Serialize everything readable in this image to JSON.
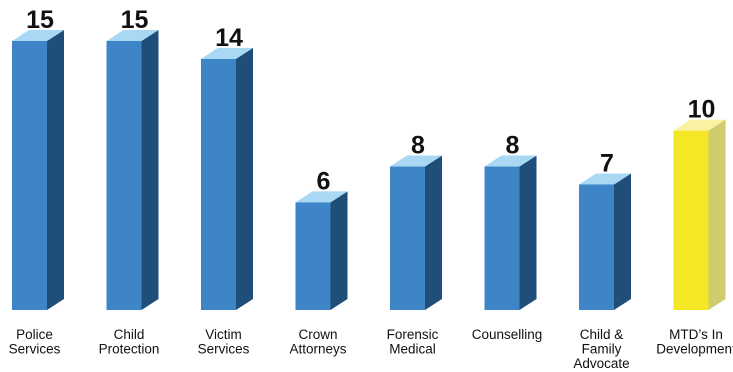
{
  "chart_data": {
    "type": "bar",
    "style": "3d-columns",
    "grid": false,
    "legend": "none",
    "title": "",
    "xlabel": "",
    "ylabel": "",
    "ylim": [
      0,
      15
    ],
    "categories": [
      "Police Services",
      "Child Protection",
      "Victim Services",
      "Crown Attorneys",
      "Forensic Medical",
      "Counselling",
      "Child & Family Advocate",
      "MTD's In Development"
    ],
    "category_label_lines": [
      [
        "Police",
        "Services"
      ],
      [
        "Child",
        "Protection"
      ],
      [
        "Victim",
        "Services"
      ],
      [
        "Crown",
        "Attorneys"
      ],
      [
        "Forensic",
        "Medical"
      ],
      [
        "Counselling"
      ],
      [
        "Child &",
        "Family",
        "Advocate"
      ],
      [
        "MTD’s In",
        "Development"
      ]
    ],
    "values": [
      15,
      15,
      14,
      6,
      8,
      8,
      7,
      10
    ],
    "value_labels": [
      "15",
      "15",
      "14",
      "6",
      "8",
      "8",
      "7",
      "10"
    ],
    "colors": {
      "front": [
        "#3d85c6",
        "#3d85c6",
        "#3d85c6",
        "#3d85c6",
        "#3d85c6",
        "#3d85c6",
        "#3d85c6",
        "#f5e626"
      ],
      "side": [
        "#1f4e79",
        "#1f4e79",
        "#1f4e79",
        "#1f4e79",
        "#1f4e79",
        "#1f4e79",
        "#1f4e79",
        "#cfcc6e"
      ],
      "top": [
        "#a9d8f5",
        "#a9d8f5",
        "#a9d8f5",
        "#a9d8f5",
        "#a9d8f5",
        "#a9d8f5",
        "#a9d8f5",
        "#f8f2a2"
      ]
    }
  }
}
